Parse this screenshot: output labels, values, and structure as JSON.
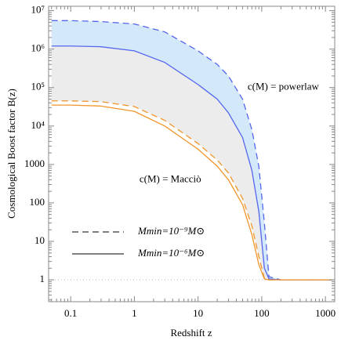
{
  "chart_data": {
    "type": "line",
    "xlabel": "Redshift z",
    "ylabel": "Cosmological Boost factor B(z)",
    "xscale": "log",
    "yscale": "log",
    "x": [
      0.05,
      0.1,
      0.3,
      1,
      3,
      10,
      20,
      30,
      50,
      70,
      90,
      110,
      130,
      200,
      500,
      1000,
      1300
    ],
    "series": [
      {
        "name": "c(M) = powerlaw, Mmin=10⁻⁹M⊙",
        "color": "#5566ee",
        "dash": true,
        "fill": "#d3e8f9",
        "values": [
          5500000,
          5500000,
          5200000,
          4500000,
          2800000,
          900000,
          400000,
          200000,
          50000,
          8000,
          900,
          30,
          1.2,
          1,
          1,
          1,
          1
        ]
      },
      {
        "name": "c(M) = powerlaw, Mmin=10⁻⁶M⊙",
        "color": "#5566ee",
        "dash": false,
        "fill": "#ececec",
        "values": [
          1200000,
          1200000,
          1150000,
          900000,
          450000,
          120000,
          50000,
          22000,
          5000,
          700,
          60,
          2,
          1.05,
          1,
          1,
          1,
          1
        ]
      },
      {
        "name": "c(M) = Macciò, Mmin=10⁻⁹M⊙",
        "color": "#f0952a",
        "dash": true,
        "values": [
          45000,
          45000,
          43000,
          32000,
          14000,
          3500,
          1300,
          600,
          130,
          25,
          4,
          1.1,
          1,
          1,
          1,
          1,
          1
        ]
      },
      {
        "name": "c(M) = Macciò, Mmin=10⁻⁶M⊙",
        "color": "#f0952a",
        "dash": false,
        "values": [
          35000,
          35000,
          33000,
          24000,
          10000,
          2500,
          900,
          400,
          90,
          15,
          2.5,
          1.05,
          1,
          1,
          1,
          1,
          1
        ]
      }
    ],
    "reference_line": 1,
    "annotations": [
      {
        "text": "c(M) = powerlaw",
        "color": "#3344dd",
        "x": 60,
        "y": 100000
      },
      {
        "text": "c(M) = Macciò",
        "color": "#f0952a",
        "x": 1.2,
        "y": 400
      }
    ],
    "legend": [
      {
        "label": "Mmin=10⁻⁹M⊙",
        "dash": true
      },
      {
        "label": "Mmin=10⁻⁶M⊙",
        "dash": false
      }
    ],
    "xlim": [
      0.045,
      1400
    ],
    "ylim": [
      0.27,
      13000000
    ],
    "xticks": [
      0.1,
      1,
      10,
      100,
      1000
    ],
    "yticks": [
      1,
      10,
      100,
      1000,
      {
        "value": 10000,
        "label": "10⁴"
      },
      {
        "value": 100000,
        "label": "10⁵"
      },
      {
        "value": 1000000,
        "label": "10⁶"
      },
      {
        "value": 10000000,
        "label": "10⁷"
      }
    ]
  }
}
